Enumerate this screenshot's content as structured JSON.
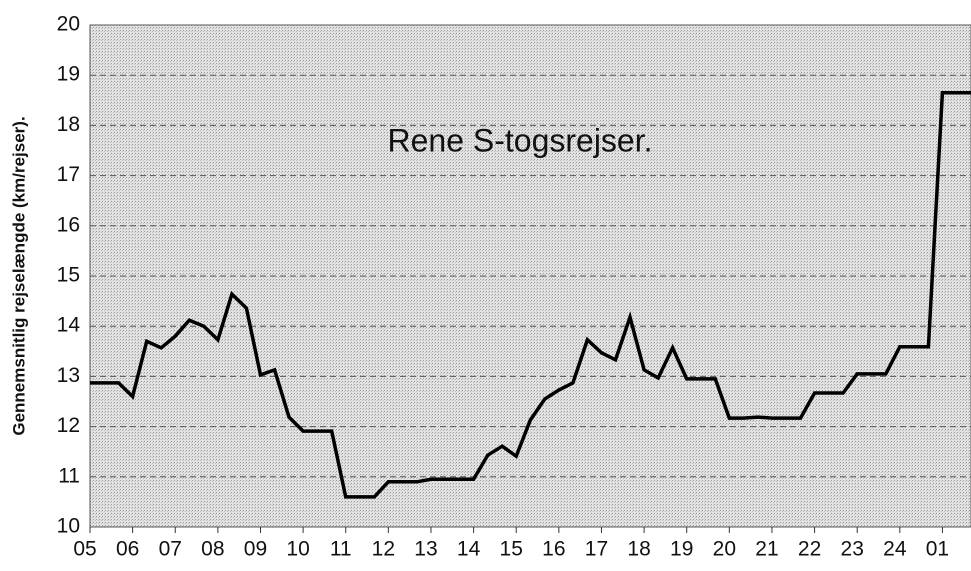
{
  "chart_data": {
    "type": "line",
    "annotation": "Rene S-togsrejser.",
    "y_label": "Gennemsnitlig rejselængde (km/rejser).",
    "x": [
      5,
      5.33,
      5.67,
      6,
      6.33,
      6.67,
      7,
      7.33,
      7.67,
      8,
      8.33,
      8.67,
      9,
      9.33,
      9.67,
      10,
      10.33,
      10.67,
      11,
      11.33,
      11.67,
      12,
      12.33,
      12.67,
      13,
      13.33,
      13.67,
      14,
      14.33,
      14.67,
      15,
      15.33,
      15.67,
      16,
      16.33,
      16.67,
      17,
      17.33,
      17.67,
      18,
      18.33,
      18.67,
      19,
      19.33,
      19.67,
      20,
      20.33,
      20.67,
      21,
      21.33,
      21.67,
      22,
      22.33,
      22.67,
      23,
      23.33,
      23.67,
      24,
      24.33,
      24.67,
      25,
      25.67
    ],
    "series": [
      {
        "color": "#000000",
        "values": [
          12.87,
          12.87,
          12.87,
          12.6,
          13.7,
          13.57,
          13.8,
          14.12,
          14.0,
          13.73,
          14.64,
          14.36,
          13.03,
          13.13,
          12.19,
          11.91,
          11.91,
          11.91,
          10.6,
          10.6,
          10.6,
          10.9,
          10.9,
          10.9,
          10.95,
          10.95,
          10.95,
          10.95,
          11.43,
          11.61,
          11.41,
          12.13,
          12.55,
          12.73,
          12.87,
          13.73,
          13.47,
          13.33,
          14.18,
          13.13,
          12.97,
          13.57,
          12.95,
          12.95,
          12.95,
          12.17,
          12.17,
          12.19,
          12.17,
          12.17,
          12.17,
          12.67,
          12.67,
          12.67,
          13.05,
          13.05,
          13.05,
          13.59,
          13.59,
          13.59,
          18.65,
          18.65
        ]
      }
    ],
    "xlim": [
      5,
      25.67
    ],
    "xticks": [
      {
        "value": 5,
        "label": "05"
      },
      {
        "value": 6,
        "label": "06"
      },
      {
        "value": 7,
        "label": "07"
      },
      {
        "value": 8,
        "label": "08"
      },
      {
        "value": 9,
        "label": "09"
      },
      10,
      11,
      12,
      13,
      14,
      15,
      16,
      17,
      18,
      19,
      20,
      21,
      22,
      23,
      24,
      {
        "value": 25,
        "label": "01"
      }
    ],
    "ylim": [
      10,
      20
    ],
    "yticks": [
      10,
      11,
      12,
      13,
      14,
      15,
      16,
      17,
      18,
      19,
      20
    ],
    "grid": true
  }
}
